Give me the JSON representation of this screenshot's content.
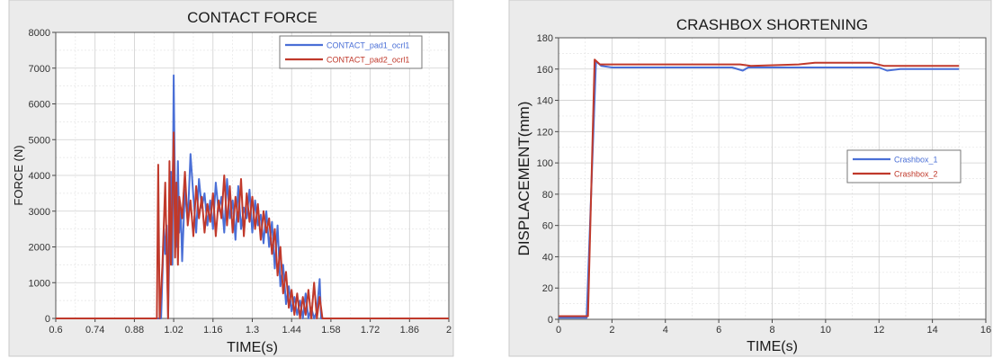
{
  "colors": {
    "blue": "#4a6fd6",
    "red": "#c0392b",
    "grid": "#dcdcdc",
    "frame_bg": "#ececec"
  },
  "chart_data": [
    {
      "type": "line",
      "title": "CONTACT FORCE",
      "xlabel": "TIME(s)",
      "ylabel": "FORCE (N)",
      "xlim": [
        0.6,
        2.0
      ],
      "ylim": [
        0,
        8000
      ],
      "x_ticks": [
        "0.6",
        "0.74",
        "0.88",
        "1.02",
        "1.16",
        "1.3",
        "1.44",
        "1.58",
        "1.72",
        "1.86",
        "2"
      ],
      "x_tick_values": [
        0.6,
        0.74,
        0.88,
        1.02,
        1.16,
        1.3,
        1.44,
        1.58,
        1.72,
        1.86,
        2.0
      ],
      "y_ticks": [
        "0",
        "1000",
        "2000",
        "3000",
        "4000",
        "5000",
        "6000",
        "7000",
        "8000"
      ],
      "y_tick_values": [
        0,
        1000,
        2000,
        3000,
        4000,
        5000,
        6000,
        7000,
        8000
      ],
      "grid": true,
      "legend_position": "top-right",
      "series": [
        {
          "name": "CONTACT_pad1_ocrl1",
          "color": "#4a6fd6",
          "points": [
            [
              0.6,
              0
            ],
            [
              0.96,
              0
            ],
            [
              0.975,
              0
            ],
            [
              0.98,
              1200
            ],
            [
              0.985,
              2500
            ],
            [
              0.99,
              1800
            ],
            [
              0.995,
              2600
            ],
            [
              1.0,
              0
            ],
            [
              1.005,
              2200
            ],
            [
              1.01,
              4100
            ],
            [
              1.015,
              1500
            ],
            [
              1.02,
              6800
            ],
            [
              1.025,
              3200
            ],
            [
              1.03,
              2000
            ],
            [
              1.035,
              4400
            ],
            [
              1.04,
              2400
            ],
            [
              1.045,
              3100
            ],
            [
              1.05,
              1600
            ],
            [
              1.06,
              3600
            ],
            [
              1.07,
              2700
            ],
            [
              1.08,
              4600
            ],
            [
              1.09,
              3400
            ],
            [
              1.1,
              2400
            ],
            [
              1.11,
              3900
            ],
            [
              1.12,
              3100
            ],
            [
              1.13,
              3500
            ],
            [
              1.14,
              2600
            ],
            [
              1.15,
              3300
            ],
            [
              1.16,
              2500
            ],
            [
              1.17,
              3800
            ],
            [
              1.18,
              3000
            ],
            [
              1.19,
              3400
            ],
            [
              1.2,
              2400
            ],
            [
              1.21,
              3900
            ],
            [
              1.22,
              2800
            ],
            [
              1.23,
              3300
            ],
            [
              1.24,
              2200
            ],
            [
              1.25,
              3700
            ],
            [
              1.26,
              2500
            ],
            [
              1.27,
              3100
            ],
            [
              1.28,
              2800
            ],
            [
              1.29,
              3600
            ],
            [
              1.3,
              2400
            ],
            [
              1.31,
              3300
            ],
            [
              1.32,
              2600
            ],
            [
              1.33,
              2900
            ],
            [
              1.34,
              2100
            ],
            [
              1.35,
              3000
            ],
            [
              1.36,
              2000
            ],
            [
              1.37,
              2700
            ],
            [
              1.38,
              1400
            ],
            [
              1.39,
              2600
            ],
            [
              1.4,
              900
            ],
            [
              1.41,
              1500
            ],
            [
              1.42,
              400
            ],
            [
              1.43,
              900
            ],
            [
              1.44,
              200
            ],
            [
              1.45,
              600
            ],
            [
              1.46,
              100
            ],
            [
              1.47,
              500
            ],
            [
              1.48,
              0
            ],
            [
              1.49,
              700
            ],
            [
              1.5,
              0
            ],
            [
              1.51,
              300
            ],
            [
              1.52,
              0
            ],
            [
              1.53,
              200
            ],
            [
              1.54,
              1100
            ],
            [
              1.545,
              0
            ],
            [
              2.0,
              0
            ]
          ]
        },
        {
          "name": "CONTACT_pad2_ocrl1",
          "color": "#c0392b",
          "points": [
            [
              0.6,
              0
            ],
            [
              0.955,
              0
            ],
            [
              0.96,
              0
            ],
            [
              0.965,
              4300
            ],
            [
              0.97,
              0
            ],
            [
              0.98,
              1500
            ],
            [
              0.99,
              3800
            ],
            [
              1.0,
              0
            ],
            [
              1.005,
              4400
            ],
            [
              1.01,
              1500
            ],
            [
              1.015,
              3300
            ],
            [
              1.02,
              5200
            ],
            [
              1.025,
              1700
            ],
            [
              1.03,
              3800
            ],
            [
              1.035,
              1500
            ],
            [
              1.04,
              3400
            ],
            [
              1.05,
              2800
            ],
            [
              1.06,
              4100
            ],
            [
              1.07,
              2600
            ],
            [
              1.08,
              3300
            ],
            [
              1.09,
              2300
            ],
            [
              1.1,
              3700
            ],
            [
              1.11,
              2800
            ],
            [
              1.12,
              3400
            ],
            [
              1.13,
              2400
            ],
            [
              1.14,
              3200
            ],
            [
              1.15,
              2700
            ],
            [
              1.16,
              3500
            ],
            [
              1.17,
              2300
            ],
            [
              1.18,
              3300
            ],
            [
              1.19,
              2800
            ],
            [
              1.2,
              4000
            ],
            [
              1.21,
              2600
            ],
            [
              1.22,
              3700
            ],
            [
              1.23,
              2400
            ],
            [
              1.24,
              3400
            ],
            [
              1.25,
              2700
            ],
            [
              1.26,
              3900
            ],
            [
              1.27,
              2300
            ],
            [
              1.28,
              3500
            ],
            [
              1.29,
              2700
            ],
            [
              1.3,
              3400
            ],
            [
              1.31,
              2500
            ],
            [
              1.32,
              3200
            ],
            [
              1.33,
              2200
            ],
            [
              1.34,
              3000
            ],
            [
              1.35,
              2400
            ],
            [
              1.36,
              2800
            ],
            [
              1.37,
              1800
            ],
            [
              1.38,
              2500
            ],
            [
              1.39,
              1200
            ],
            [
              1.4,
              2000
            ],
            [
              1.41,
              700
            ],
            [
              1.42,
              1300
            ],
            [
              1.43,
              300
            ],
            [
              1.44,
              800
            ],
            [
              1.45,
              100
            ],
            [
              1.46,
              700
            ],
            [
              1.47,
              0
            ],
            [
              1.48,
              600
            ],
            [
              1.49,
              100
            ],
            [
              1.5,
              800
            ],
            [
              1.51,
              0
            ],
            [
              1.52,
              1000
            ],
            [
              1.53,
              0
            ],
            [
              1.54,
              600
            ],
            [
              1.55,
              0
            ],
            [
              2.0,
              0
            ]
          ]
        }
      ]
    },
    {
      "type": "line",
      "title": "CRASHBOX SHORTENING",
      "xlabel": "TIME(s)",
      "ylabel": "DISPLACEMENT(mm)",
      "xlim": [
        0,
        16
      ],
      "ylim": [
        0,
        180
      ],
      "x_ticks": [
        "0",
        "2",
        "4",
        "6",
        "8",
        "10",
        "12",
        "14",
        "16"
      ],
      "x_tick_values": [
        0,
        2,
        4,
        6,
        8,
        10,
        12,
        14,
        16
      ],
      "y_ticks": [
        "0",
        "20",
        "40",
        "60",
        "80",
        "100",
        "120",
        "140",
        "160",
        "180"
      ],
      "y_tick_values": [
        0,
        20,
        40,
        60,
        80,
        100,
        120,
        140,
        160,
        180
      ],
      "grid": true,
      "legend_position": "center-right",
      "series": [
        {
          "name": "Crashbox_1",
          "color": "#4a6fd6",
          "points": [
            [
              0,
              1
            ],
            [
              1.0,
              1
            ],
            [
              1.05,
              1
            ],
            [
              1.4,
              165
            ],
            [
              1.6,
              162
            ],
            [
              2,
              161
            ],
            [
              6.5,
              161
            ],
            [
              6.9,
              159
            ],
            [
              7.1,
              161
            ],
            [
              9,
              161
            ],
            [
              12,
              161
            ],
            [
              12.3,
              159
            ],
            [
              12.8,
              160
            ],
            [
              13.5,
              160
            ],
            [
              15,
              160
            ]
          ]
        },
        {
          "name": "Crashbox_2",
          "color": "#c0392b",
          "points": [
            [
              0,
              2
            ],
            [
              1.05,
              2
            ],
            [
              1.1,
              2
            ],
            [
              1.35,
              166
            ],
            [
              1.55,
              163
            ],
            [
              2,
              163
            ],
            [
              6.8,
              163
            ],
            [
              7.2,
              162
            ],
            [
              9,
              163
            ],
            [
              9.6,
              164
            ],
            [
              11.7,
              164
            ],
            [
              12.2,
              162
            ],
            [
              12.6,
              162
            ],
            [
              13.4,
              162
            ],
            [
              15,
              162
            ]
          ]
        }
      ]
    }
  ]
}
